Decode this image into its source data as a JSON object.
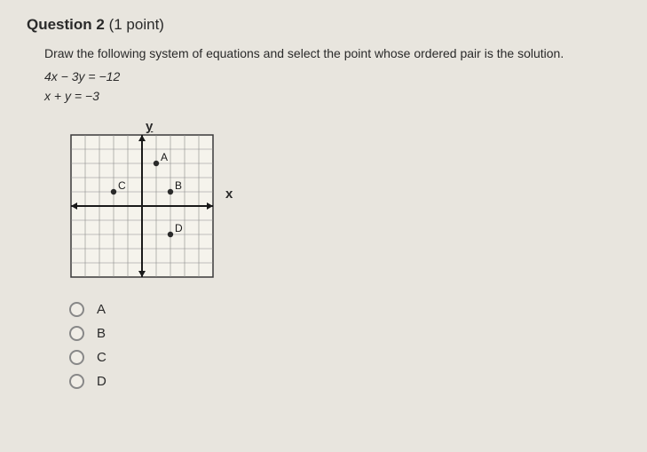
{
  "header": {
    "number": "Question 2",
    "points": "(1 point)"
  },
  "prompt": "Draw the following system of equations and select the point whose ordered pair is the solution.",
  "equations": {
    "eq1": "4x − 3y = −12",
    "eq2": "x + y = −3"
  },
  "graph": {
    "size": 160,
    "grid_cells": 10,
    "cell_size": 16,
    "background": "#f5f3ec",
    "border_color": "#3a3a3a",
    "grid_color": "#8a8a8a",
    "axis_color": "#1a1a1a",
    "x_label": "x",
    "y_label": "y",
    "points": [
      {
        "label": "A",
        "gx": 6,
        "gy": 2
      },
      {
        "label": "C",
        "gx": 3,
        "gy": 4
      },
      {
        "label": "B",
        "gx": 7,
        "gy": 4
      },
      {
        "label": "D",
        "gx": 7,
        "gy": 7
      }
    ],
    "point_fill": "#2a2a2a",
    "point_radius": 3.2,
    "label_fontsize": 12
  },
  "options": [
    {
      "label": "A"
    },
    {
      "label": "B"
    },
    {
      "label": "C"
    },
    {
      "label": "D"
    }
  ]
}
